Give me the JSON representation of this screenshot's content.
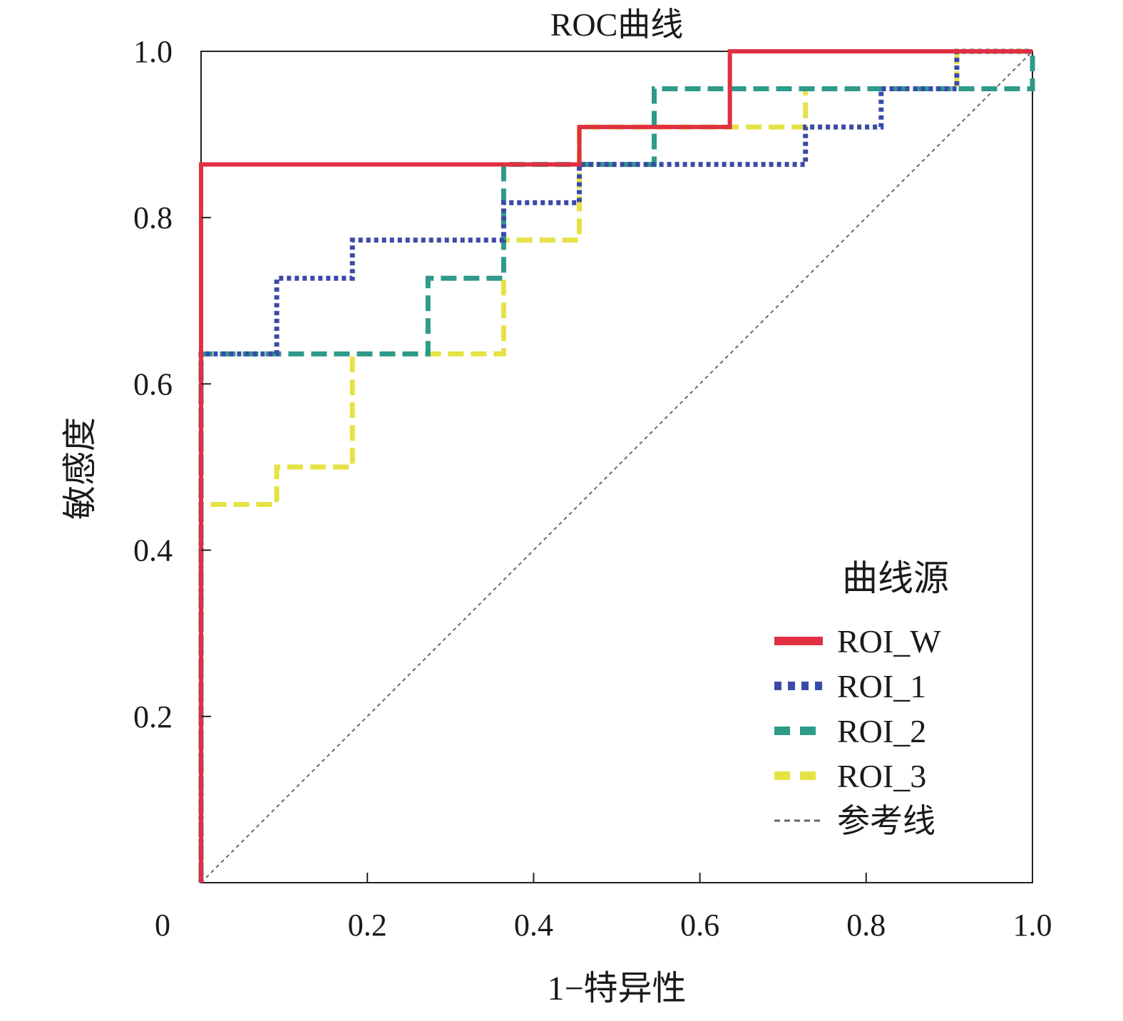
{
  "chart_data": {
    "type": "line",
    "title": "ROC曲线",
    "xlabel": "1−特异性",
    "ylabel": "敏感度",
    "xlim": [
      0,
      1
    ],
    "ylim": [
      0,
      1
    ],
    "x_ticks": [
      "0",
      "0.2",
      "0.4",
      "0.6",
      "0.8",
      "1.0"
    ],
    "y_ticks": [
      "0.2",
      "0.4",
      "0.6",
      "0.8",
      "1.0"
    ],
    "grid": false,
    "legend": {
      "title": "曲线源",
      "position": "bottom-right"
    },
    "series": [
      {
        "name": "ROI_W",
        "color": "#e03040",
        "style": "solid",
        "x": [
          0,
          0,
          0.455,
          0.455,
          0.636,
          0.636,
          1.0
        ],
        "y": [
          0,
          0.864,
          0.864,
          0.909,
          0.909,
          1.0,
          1.0
        ]
      },
      {
        "name": "ROI_1",
        "color": "#3a4aa8",
        "style": "dotted",
        "x": [
          0,
          0,
          0.091,
          0.091,
          0.182,
          0.182,
          0.364,
          0.364,
          0.455,
          0.455,
          0.727,
          0.727,
          0.818,
          0.818,
          0.909,
          0.909,
          1.0
        ],
        "y": [
          0,
          0.636,
          0.636,
          0.727,
          0.727,
          0.773,
          0.773,
          0.818,
          0.818,
          0.864,
          0.864,
          0.909,
          0.909,
          0.955,
          0.955,
          1.0,
          1.0
        ]
      },
      {
        "name": "ROI_2",
        "color": "#2e9a8a",
        "style": "dashed",
        "x": [
          0,
          0,
          0.273,
          0.273,
          0.364,
          0.364,
          0.545,
          0.545,
          1.0,
          1.0
        ],
        "y": [
          0,
          0.636,
          0.636,
          0.727,
          0.727,
          0.864,
          0.864,
          0.955,
          0.955,
          1.0
        ]
      },
      {
        "name": "ROI_3",
        "color": "#e6e245",
        "style": "dashed",
        "x": [
          0,
          0,
          0.091,
          0.091,
          0.182,
          0.182,
          0.364,
          0.364,
          0.455,
          0.455,
          0.727,
          0.727,
          0.909,
          0.909,
          1.0
        ],
        "y": [
          0,
          0.455,
          0.455,
          0.5,
          0.5,
          0.636,
          0.636,
          0.773,
          0.773,
          0.909,
          0.909,
          0.955,
          0.955,
          1.0,
          1.0
        ]
      },
      {
        "name": "参考线",
        "color": "#666666",
        "style": "fine-dashed",
        "x": [
          0,
          1
        ],
        "y": [
          0,
          1
        ]
      }
    ]
  }
}
